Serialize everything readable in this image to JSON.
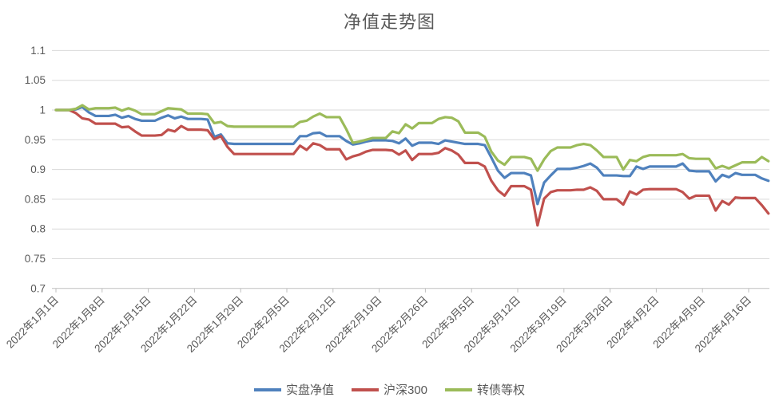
{
  "chart": {
    "title": "净值走势图",
    "background": "#FFFFFF",
    "grid_color": "#D9D9D9",
    "axis_color": "#BFBFBF",
    "text_color": "#595959"
  },
  "chart_data": {
    "type": "line",
    "title": "净值走势图",
    "xlabel": "",
    "ylabel": "",
    "grid": "horizontal",
    "legend_position": "bottom",
    "ylim": [
      0.7,
      1.1
    ],
    "y_ticks": [
      1.1,
      1.05,
      1.0,
      0.95,
      0.9,
      0.85,
      0.8,
      0.75,
      0.7
    ],
    "y_tick_labels": [
      "1.1",
      "1.05",
      "1",
      "0.95",
      "0.9",
      "0.85",
      "0.8",
      "0.75",
      "0.7"
    ],
    "x_tick_labels": [
      "2022年1月1日",
      "2022年1月8日",
      "2022年1月15日",
      "2022年1月22日",
      "2022年1月29日",
      "2022年2月5日",
      "2022年2月12日",
      "2022年2月19日",
      "2022年2月26日",
      "2022年3月5日",
      "2022年3月12日",
      "2022年3月19日",
      "2022年3月26日",
      "2022年4月2日",
      "2022年4月9日",
      "2022年4月16日"
    ],
    "days_per_tick": 7,
    "x_unit": "daily points starting 2022年1月1日, flat on non-trading days",
    "series": [
      {
        "name": "实盘净值",
        "color": "#4F81BD",
        "values": [
          1.0,
          1.0,
          1.0,
          1.001,
          1.005,
          0.996,
          0.99,
          0.99,
          0.99,
          0.992,
          0.987,
          0.99,
          0.985,
          0.982,
          0.982,
          0.982,
          0.987,
          0.991,
          0.986,
          0.989,
          0.985,
          0.985,
          0.985,
          0.984,
          0.955,
          0.959,
          0.944,
          0.943,
          0.943,
          0.943,
          0.943,
          0.943,
          0.943,
          0.943,
          0.943,
          0.943,
          0.943,
          0.956,
          0.956,
          0.961,
          0.962,
          0.956,
          0.956,
          0.956,
          0.948,
          0.942,
          0.944,
          0.947,
          0.949,
          0.949,
          0.949,
          0.948,
          0.944,
          0.952,
          0.94,
          0.945,
          0.945,
          0.945,
          0.943,
          0.949,
          0.947,
          0.945,
          0.943,
          0.943,
          0.943,
          0.941,
          0.92,
          0.898,
          0.886,
          0.894,
          0.894,
          0.894,
          0.89,
          0.842,
          0.878,
          0.89,
          0.901,
          0.901,
          0.901,
          0.903,
          0.906,
          0.91,
          0.903,
          0.89,
          0.89,
          0.89,
          0.889,
          0.889,
          0.905,
          0.901,
          0.905,
          0.905,
          0.905,
          0.905,
          0.905,
          0.91,
          0.898,
          0.897,
          0.897,
          0.897,
          0.88,
          0.891,
          0.887,
          0.894,
          0.891,
          0.891,
          0.891,
          0.885,
          0.881
        ]
      },
      {
        "name": "沪深300",
        "color": "#C0504D",
        "values": [
          1.0,
          1.0,
          1.0,
          0.995,
          0.986,
          0.984,
          0.977,
          0.977,
          0.977,
          0.977,
          0.971,
          0.972,
          0.964,
          0.957,
          0.957,
          0.957,
          0.958,
          0.967,
          0.964,
          0.973,
          0.967,
          0.967,
          0.967,
          0.966,
          0.951,
          0.956,
          0.938,
          0.926,
          0.926,
          0.926,
          0.926,
          0.926,
          0.926,
          0.926,
          0.926,
          0.926,
          0.926,
          0.94,
          0.933,
          0.944,
          0.941,
          0.934,
          0.934,
          0.934,
          0.917,
          0.922,
          0.925,
          0.93,
          0.933,
          0.933,
          0.933,
          0.932,
          0.925,
          0.932,
          0.916,
          0.926,
          0.926,
          0.926,
          0.928,
          0.936,
          0.932,
          0.925,
          0.911,
          0.911,
          0.911,
          0.905,
          0.881,
          0.865,
          0.856,
          0.872,
          0.872,
          0.872,
          0.866,
          0.806,
          0.851,
          0.862,
          0.865,
          0.865,
          0.865,
          0.866,
          0.866,
          0.87,
          0.864,
          0.85,
          0.85,
          0.85,
          0.841,
          0.863,
          0.858,
          0.866,
          0.867,
          0.867,
          0.867,
          0.867,
          0.867,
          0.862,
          0.851,
          0.856,
          0.856,
          0.856,
          0.831,
          0.847,
          0.841,
          0.853,
          0.852,
          0.852,
          0.852,
          0.84,
          0.826
        ]
      },
      {
        "name": "转债等权",
        "color": "#9BBB59",
        "values": [
          1.0,
          1.0,
          1.0,
          1.002,
          1.008,
          1.001,
          1.003,
          1.003,
          1.003,
          1.004,
          0.999,
          1.003,
          0.999,
          0.993,
          0.993,
          0.993,
          0.998,
          1.003,
          1.002,
          1.001,
          0.994,
          0.994,
          0.994,
          0.993,
          0.978,
          0.98,
          0.973,
          0.972,
          0.972,
          0.972,
          0.972,
          0.972,
          0.972,
          0.972,
          0.972,
          0.972,
          0.972,
          0.98,
          0.982,
          0.989,
          0.994,
          0.988,
          0.988,
          0.988,
          0.968,
          0.945,
          0.947,
          0.95,
          0.953,
          0.953,
          0.953,
          0.964,
          0.961,
          0.976,
          0.969,
          0.978,
          0.978,
          0.978,
          0.985,
          0.988,
          0.987,
          0.981,
          0.962,
          0.962,
          0.962,
          0.955,
          0.93,
          0.915,
          0.908,
          0.921,
          0.921,
          0.921,
          0.918,
          0.898,
          0.917,
          0.931,
          0.937,
          0.937,
          0.937,
          0.941,
          0.943,
          0.941,
          0.932,
          0.921,
          0.921,
          0.921,
          0.9,
          0.916,
          0.914,
          0.921,
          0.924,
          0.924,
          0.924,
          0.924,
          0.924,
          0.926,
          0.919,
          0.918,
          0.918,
          0.918,
          0.902,
          0.906,
          0.902,
          0.907,
          0.912,
          0.912,
          0.912,
          0.921,
          0.914
        ]
      }
    ]
  }
}
